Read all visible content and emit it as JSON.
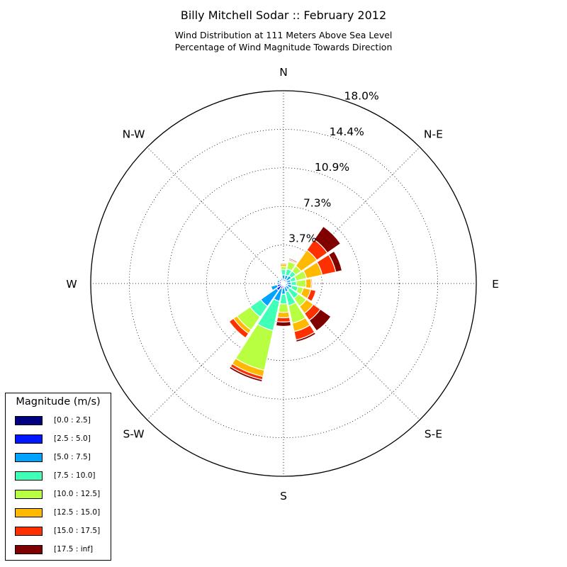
{
  "chart_data": {
    "type": "windrose",
    "title": "Billy Mitchell Sodar :: February 2012",
    "subtitle_lines": [
      "Wind Distribution at 111 Meters Above Sea Level",
      "Percentage of Wind Magnitude Towards Direction"
    ],
    "radial_ticks": [
      "3.7%",
      "7.3%",
      "10.9%",
      "14.4%",
      "18.0%"
    ],
    "radial_max": 18.0,
    "directions": [
      "N",
      "N-E",
      "E",
      "S-E",
      "S",
      "S-W",
      "W",
      "N-W"
    ],
    "legend": {
      "title": "Magnitude (m/s)",
      "placement": "lower-left",
      "bins": [
        "[0.0 : 2.5]",
        "[2.5 : 5.0]",
        "[5.0 : 7.5]",
        "[7.5 : 10.0]",
        "[10.0 : 12.5]",
        "[12.5 : 15.0]",
        "[15.0 : 17.5]",
        "[17.5 : inf]"
      ],
      "colors": [
        "#000080",
        "#0018ff",
        "#00a4ff",
        "#40ffb7",
        "#b7ff40",
        "#ffb900",
        "#ff3000",
        "#800000"
      ]
    },
    "sector_angles_deg": [
      0,
      22.5,
      45,
      67.5,
      90,
      112.5,
      135,
      157.5,
      180,
      202.5,
      225,
      247.5,
      270,
      292.5,
      315,
      337.5
    ],
    "sectors": [
      [
        0.1,
        0.3,
        0.4,
        0.5,
        0.3,
        0.2,
        0.1,
        0.0
      ],
      [
        0.1,
        0.3,
        0.4,
        0.6,
        0.7,
        0.1,
        0.1,
        0.1
      ],
      [
        0.1,
        0.3,
        0.5,
        0.5,
        0.6,
        1.8,
        1.2,
        1.5
      ],
      [
        0.1,
        0.2,
        0.4,
        0.5,
        1.0,
        1.5,
        1.3,
        0.6
      ],
      [
        0.1,
        0.2,
        0.4,
        0.5,
        0.9,
        0.5,
        0.1,
        0.0
      ],
      [
        0.1,
        0.3,
        0.4,
        0.6,
        0.5,
        0.7,
        0.5,
        0.0
      ],
      [
        0.1,
        0.2,
        0.4,
        1.0,
        0.9,
        0.8,
        0.8,
        1.2
      ],
      [
        0.1,
        0.2,
        0.5,
        1.3,
        1.7,
        0.8,
        0.8,
        0.2
      ],
      [
        0.1,
        0.3,
        0.6,
        0.9,
        0.8,
        0.5,
        0.4,
        0.4
      ],
      [
        0.1,
        0.4,
        1.2,
        2.8,
        3.8,
        0.6,
        0.3,
        0.2
      ],
      [
        0.1,
        0.7,
        1.8,
        1.2,
        1.5,
        0.4,
        0.5,
        0.0
      ],
      [
        0.1,
        0.5,
        0.6,
        0.0,
        0.0,
        0.0,
        0.0,
        0.0
      ],
      [
        0.1,
        0.3,
        0.2,
        0.0,
        0.0,
        0.0,
        0.0,
        0.0
      ],
      [
        0.1,
        0.3,
        0.2,
        0.0,
        0.0,
        0.0,
        0.0,
        0.0
      ],
      [
        0.1,
        0.2,
        0.2,
        0.1,
        0.0,
        0.0,
        0.0,
        0.0
      ],
      [
        0.1,
        0.2,
        0.2,
        0.1,
        0.0,
        0.0,
        0.0,
        0.0
      ]
    ],
    "grid": true
  }
}
